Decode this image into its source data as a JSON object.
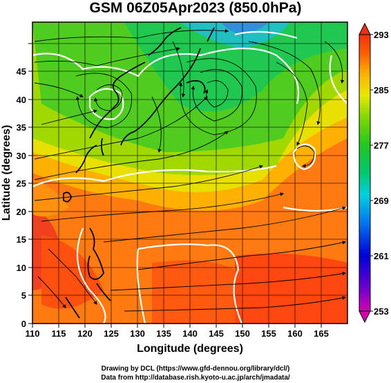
{
  "title": "GSM 06Z05Apr2023 (850.0hPa)",
  "x_axis": {
    "label": "Longitude (degrees)",
    "range": [
      110,
      170
    ],
    "ticks": [
      "110",
      "115",
      "120",
      "125",
      "130",
      "135",
      "140",
      "145",
      "150",
      "155",
      "160",
      "165"
    ]
  },
  "y_axis": {
    "label": "Latitude  (degrees)",
    "range": [
      0,
      50
    ],
    "ticks": [
      "0",
      "5",
      "10",
      "15",
      "20",
      "25",
      "30",
      "35",
      "40",
      "45"
    ]
  },
  "colorbar": {
    "range": [
      253,
      293
    ],
    "labels": [
      "293",
      "285",
      "277",
      "269",
      "261",
      "253"
    ],
    "colors": [
      "#d400b0",
      "#6600d0",
      "#0000d8",
      "#0080f0",
      "#00d0e0",
      "#00c870",
      "#20c820",
      "#80d800",
      "#e8e800",
      "#ffb000",
      "#ff6000",
      "#f03010"
    ]
  },
  "credits": [
    "Drawing by DCL (https://www.gfd-dennou.org/library/dcl/)",
    "Data from http://database.rish.kyoto-u.ac.jp/arch/jmadata/"
  ]
}
